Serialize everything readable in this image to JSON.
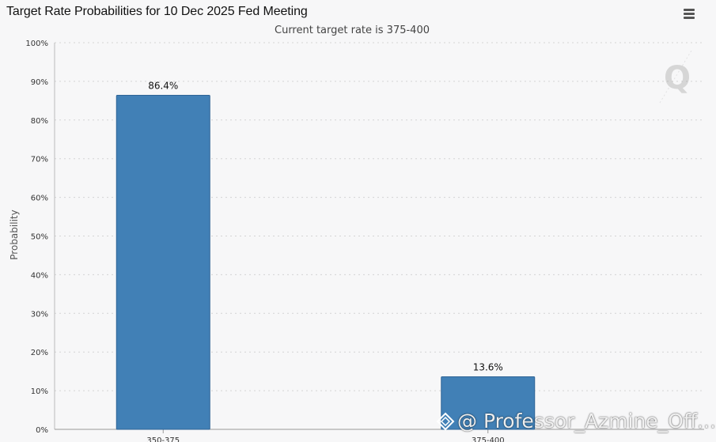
{
  "header": {
    "title": "Target Rate Probabilities for 10 Dec 2025 Fed Meeting",
    "subtitle": "Current target rate is 375-400",
    "menu_icon": "hamburger-menu-icon"
  },
  "watermark": {
    "letter": "Q"
  },
  "credit": {
    "text": "@ Professor_Azmine_Off..."
  },
  "chart_data": {
    "type": "bar",
    "categories": [
      "350-375",
      "375-400"
    ],
    "values": [
      86.4,
      13.6
    ],
    "value_labels": [
      "86.4%",
      "13.6%"
    ],
    "ylabel": "Probability",
    "ylim": [
      0,
      100
    ],
    "yticks": [
      "0%",
      "10%",
      "20%",
      "30%",
      "40%",
      "50%",
      "60%",
      "70%",
      "80%",
      "90%",
      "100%"
    ],
    "grid": true,
    "bar_color": "#4180b6",
    "legend": "none"
  }
}
